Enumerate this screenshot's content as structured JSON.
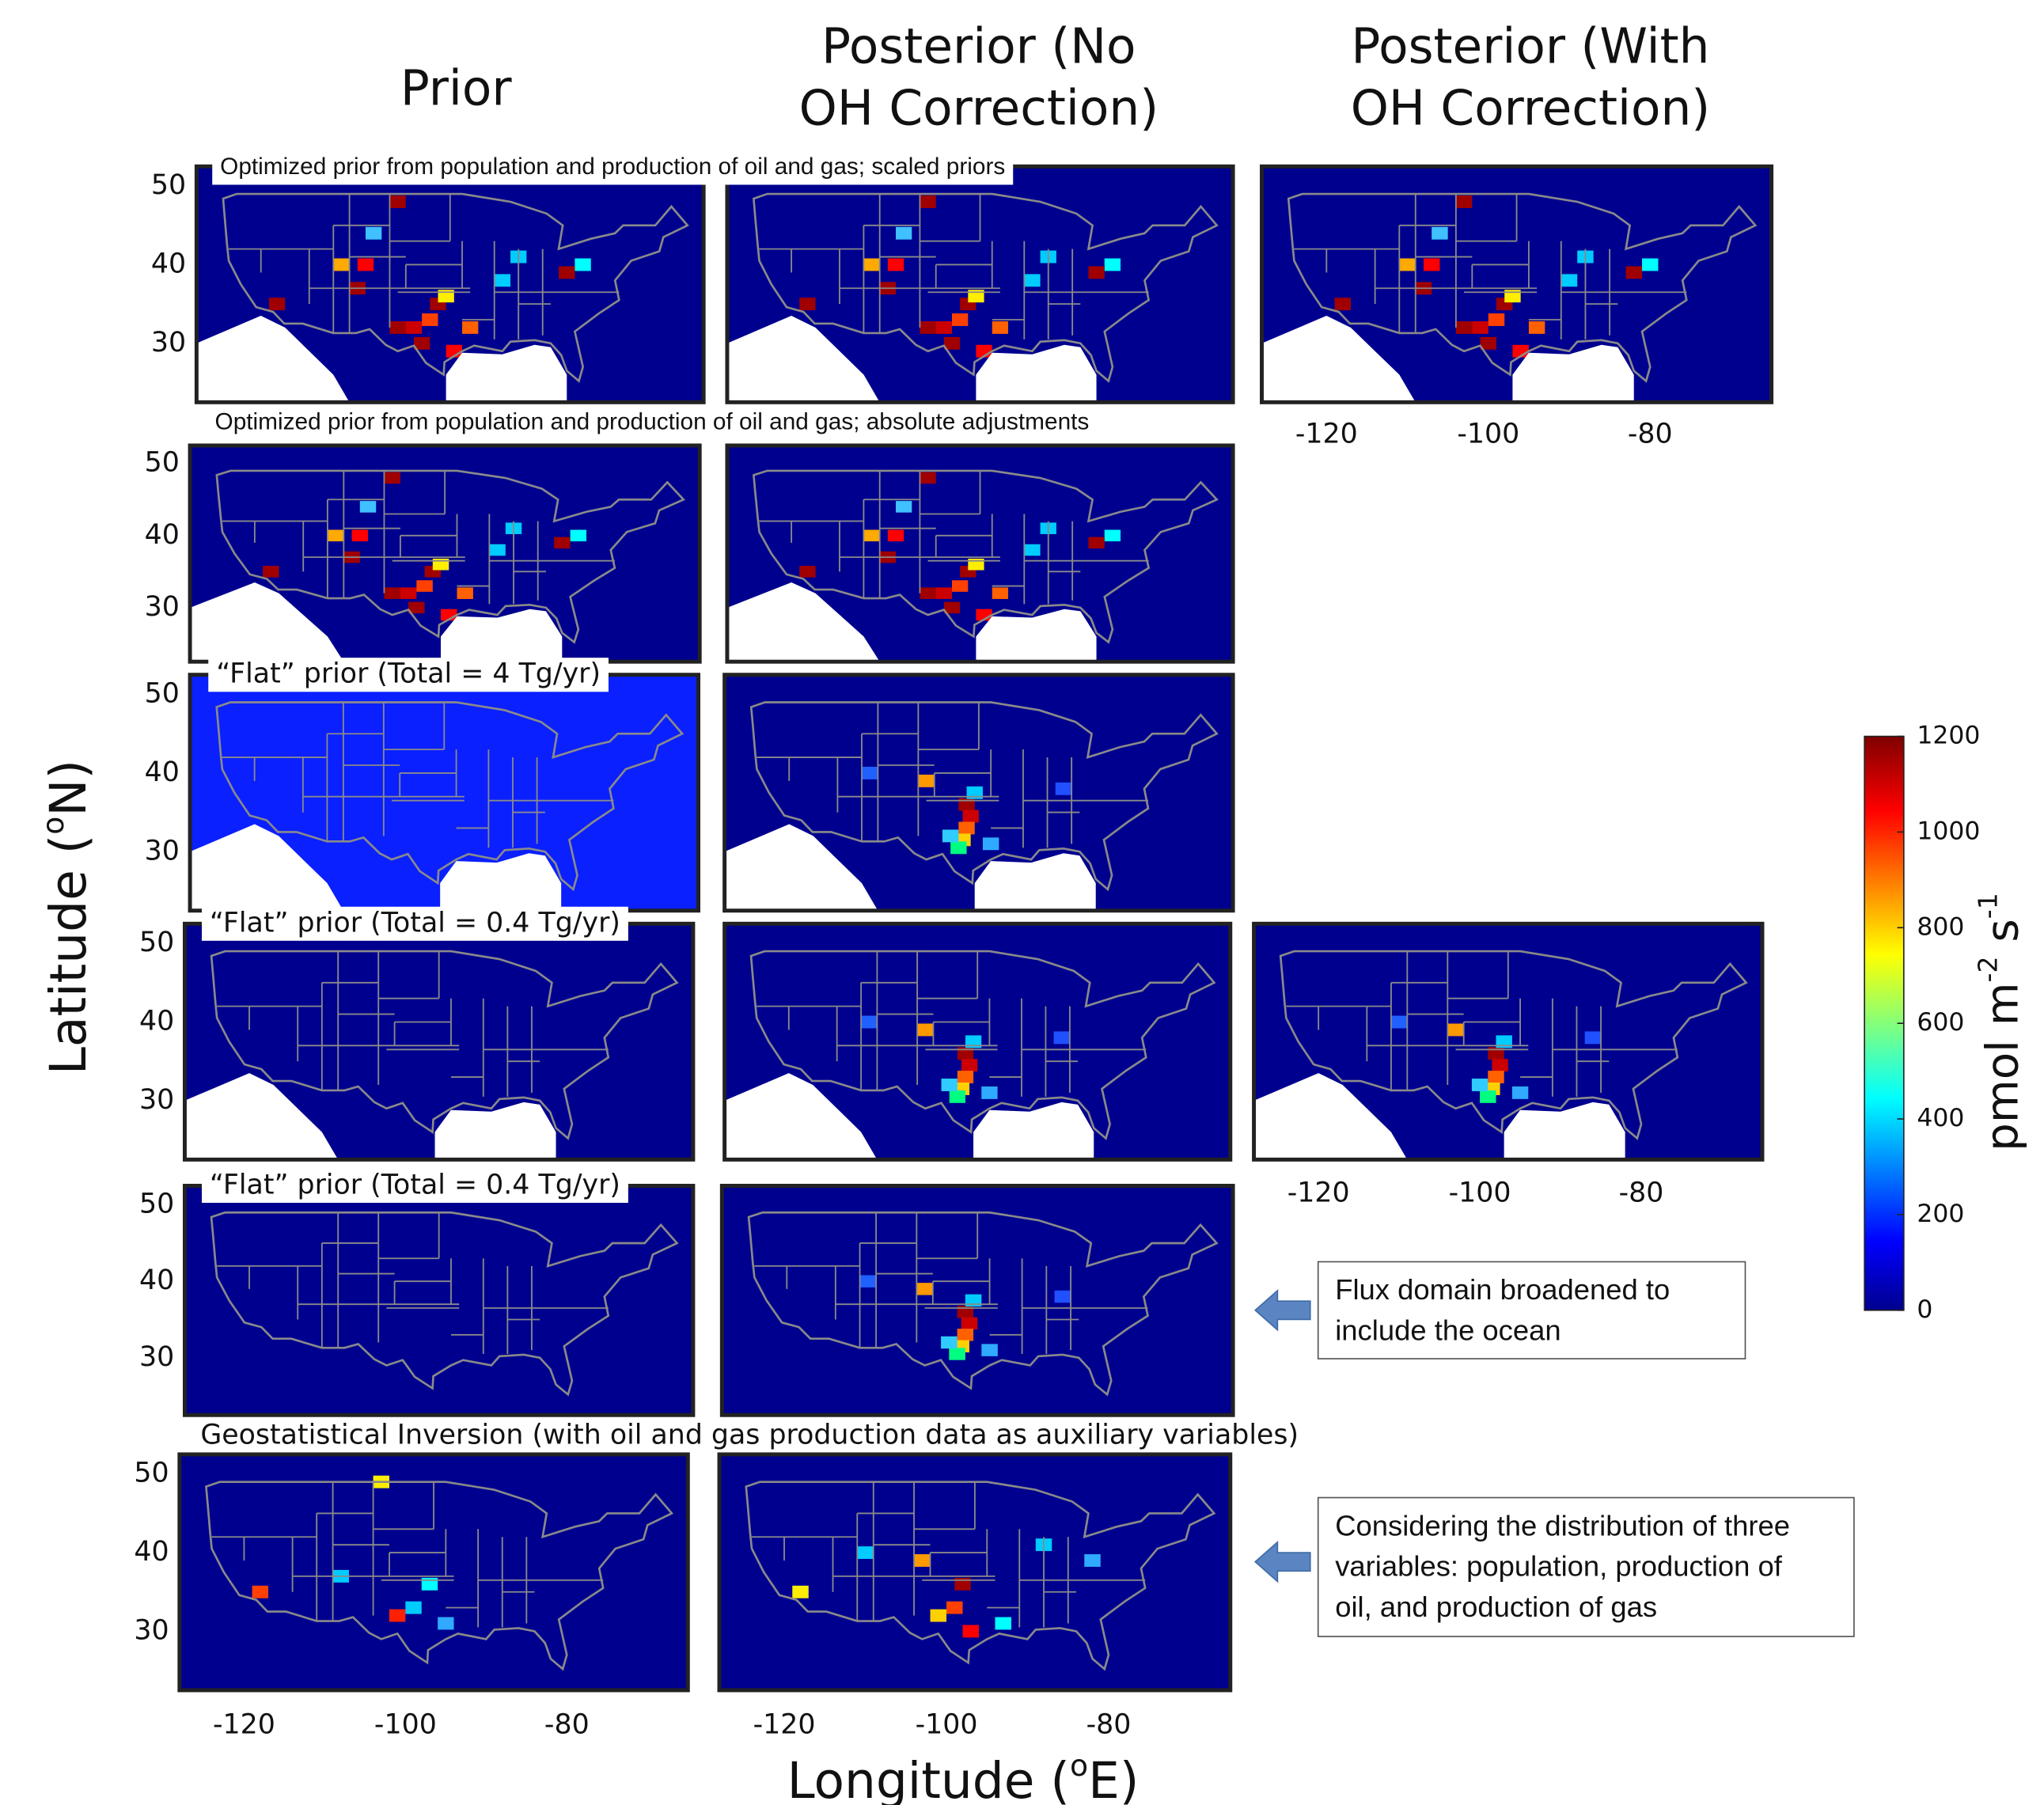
{
  "columns": [
    [
      "Prior"
    ],
    [
      "Posterior (No",
      "OH Correction)"
    ],
    [
      "Posterior (With",
      "OH Correction)"
    ]
  ],
  "rows": [
    {
      "label": "Optimized prior from population and production of oil and gas; scaled priors"
    },
    {
      "label": "Optimized prior from population and production of oil and gas; absolute adjustments"
    },
    {
      "label": "“Flat” prior (Total = 4 Tg/yr)"
    },
    {
      "label": "“Flat” prior (Total = 0.4 Tg/yr)"
    },
    {
      "label": "“Flat” prior (Total = 0.4 Tg/yr)"
    },
    {
      "label": "Geostatistical Inversion (with oil and gas production data as auxiliary variables)"
    }
  ],
  "axes": {
    "xlim": [
      -128,
      -65
    ],
    "ylim": [
      22.5,
      52.5
    ],
    "xticks": [
      -120,
      -100,
      -80
    ],
    "yticks": [
      50,
      40,
      30
    ],
    "xlabel": {
      "before": "Longitude (",
      "sup": "o",
      "after": "E)"
    },
    "ylabel": {
      "before": "Latitude (",
      "sup": "o",
      "after": "N)"
    }
  },
  "colorbar": {
    "lim": [
      0,
      1200
    ],
    "ticks": [
      0,
      200,
      400,
      600,
      800,
      1000,
      1200
    ],
    "label": {
      "unit1": "pmol m",
      "exp1": "-2",
      "unit2": " s",
      "exp2": "-1"
    }
  },
  "annotations": [
    {
      "lines": [
        "Flux domain broadened to",
        "include the ocean"
      ]
    },
    {
      "lines": [
        "Considering the distribution of three",
        "variables: population, production of",
        "oil, and production of gas"
      ]
    }
  ]
}
